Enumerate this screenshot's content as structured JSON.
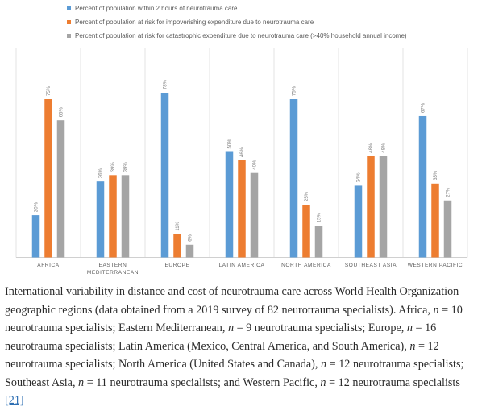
{
  "chart_data": {
    "type": "bar",
    "categories": [
      "AFRICA",
      "EASTERN MEDITERRANEAN",
      "EUROPE",
      "LATIN AMERICA",
      "NORTH AMERICA",
      "SOUTHEAST ASIA",
      "WESTERN PACIFIC"
    ],
    "category_lines": [
      [
        "AFRICA"
      ],
      [
        "EASTERN",
        "MEDITERRANEAN"
      ],
      [
        "EUROPE"
      ],
      [
        "LATIN AMERICA"
      ],
      [
        "NORTH AMERICA"
      ],
      [
        "SOUTHEAST ASIA"
      ],
      [
        "WESTERN PACIFIC"
      ]
    ],
    "series": [
      {
        "name": "Percent of population within 2 hours of neurotrauma care",
        "color": "#5b9bd5",
        "values": [
          20,
          36,
          78,
          50,
          75,
          34,
          67
        ],
        "labels": [
          "20%",
          "36%",
          "78%",
          "50%",
          "75%",
          "34%",
          "67%"
        ]
      },
      {
        "name": "Percent of population at risk for impoverishing expenditure due to neurotrauma care",
        "color": "#ed7d31",
        "values": [
          75,
          39,
          11,
          46,
          25,
          48,
          35
        ],
        "labels": [
          "75%",
          "39%",
          "11%",
          "46%",
          "25%",
          "48%",
          "35%"
        ]
      },
      {
        "name": "Percent of population at risk for catastrophic expenditure due to neurotrauma care (>40% household annual income)",
        "color": "#a5a5a5",
        "values": [
          65,
          39,
          6,
          40,
          15,
          48,
          27
        ],
        "labels": [
          "65%",
          "39%",
          "6%",
          "40%",
          "15%",
          "48%",
          "27%"
        ]
      }
    ],
    "ylim": [
      0,
      80
    ],
    "legend_position": "top",
    "grid": false
  },
  "caption": {
    "parts": [
      {
        "t": "International variability in distance and cost of neurotrauma care across World Health Organization geographic regions (data obtained from a 2019 survey of 82 neurotrauma specialists). Africa, "
      },
      {
        "i": "n"
      },
      {
        "t": " = 10 neurotrauma specialists; Eastern Mediterranean, "
      },
      {
        "i": "n"
      },
      {
        "t": " = 9 neurotrauma specialists; Europe, "
      },
      {
        "i": "n"
      },
      {
        "t": " = 16 neurotrauma specialists; Latin America (Mexico, Central America, and South America), "
      },
      {
        "i": "n"
      },
      {
        "t": " = 12 neurotrauma specialists; North America (United States and Canada), "
      },
      {
        "i": "n"
      },
      {
        "t": " = 12 neurotrauma specialists; Southeast Asia, "
      },
      {
        "i": "n"
      },
      {
        "t": " = 11 neurotrauma specialists; and Western Pacific, "
      },
      {
        "i": "n"
      },
      {
        "t": " = 12 neurotrauma specialists "
      },
      {
        "link": "[21]"
      }
    ]
  }
}
